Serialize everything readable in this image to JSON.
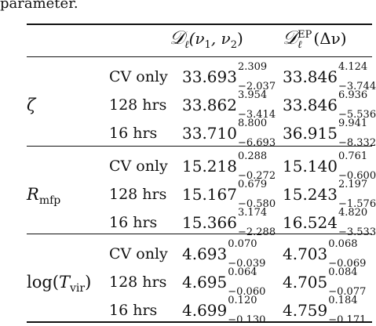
{
  "caption_fragment": "parameter.",
  "header": {
    "col1": {
      "symbol": "𝒟",
      "sub": "ℓ",
      "args": "(ν",
      "arg1_sub": "1",
      "sep": ", ν",
      "arg2_sub": "2",
      "close": ")"
    },
    "col2": {
      "symbol": "𝒟",
      "sub": "ℓ",
      "sup": "EP",
      "args": "(Δν)"
    }
  },
  "groups": [
    {
      "param_main": "ζ",
      "param_sub": "",
      "param_prefix": "",
      "param_suffix": "",
      "rows": [
        {
          "label": "CV only",
          "c1": {
            "v": "33.693",
            "up": "2.309",
            "dn": "−2.037"
          },
          "c2": {
            "v": "33.846",
            "up": "4.124",
            "dn": "−3.744"
          }
        },
        {
          "label": "128 hrs",
          "c1": {
            "v": "33.862",
            "up": "3.954",
            "dn": "−3.414"
          },
          "c2": {
            "v": "33.846",
            "up": "6.936",
            "dn": "−5.536"
          }
        },
        {
          "label": "16 hrs",
          "c1": {
            "v": "33.710",
            "up": "8.800",
            "dn": "−6.693"
          },
          "c2": {
            "v": "36.915",
            "up": "9.941",
            "dn": "−8.332"
          }
        }
      ]
    },
    {
      "param_main": "R",
      "param_sub": "mfp",
      "param_prefix": "",
      "param_suffix": "",
      "rows": [
        {
          "label": "CV only",
          "c1": {
            "v": "15.218",
            "up": "0.288",
            "dn": "−0.272"
          },
          "c2": {
            "v": "15.140",
            "up": "0.761",
            "dn": "−0.600"
          }
        },
        {
          "label": "128 hrs",
          "c1": {
            "v": "15.167",
            "up": "0.679",
            "dn": "−0.580"
          },
          "c2": {
            "v": "15.243",
            "up": "2.197",
            "dn": "−1.576"
          }
        },
        {
          "label": "16 hrs",
          "c1": {
            "v": "15.366",
            "up": "3.174",
            "dn": "−2.288"
          },
          "c2": {
            "v": "16.524",
            "up": "4.820",
            "dn": "−3.533"
          }
        }
      ]
    },
    {
      "param_main": "T",
      "param_sub": "vir",
      "param_prefix": "log(",
      "param_suffix": ")",
      "rows": [
        {
          "label": "CV only",
          "c1": {
            "v": "4.693",
            "up": "0.070",
            "dn": "−0.039"
          },
          "c2": {
            "v": "4.703",
            "up": "0.068",
            "dn": "−0.069"
          }
        },
        {
          "label": "128 hrs",
          "c1": {
            "v": "4.695",
            "up": "0.064",
            "dn": "−0.060"
          },
          "c2": {
            "v": "4.705",
            "up": "0.084",
            "dn": "−0.077"
          }
        },
        {
          "label": "16 hrs",
          "c1": {
            "v": "4.699",
            "up": "0.120",
            "dn": "−0.130"
          },
          "c2": {
            "v": "4.759",
            "up": "0.184",
            "dn": "−0.171"
          }
        }
      ]
    }
  ]
}
